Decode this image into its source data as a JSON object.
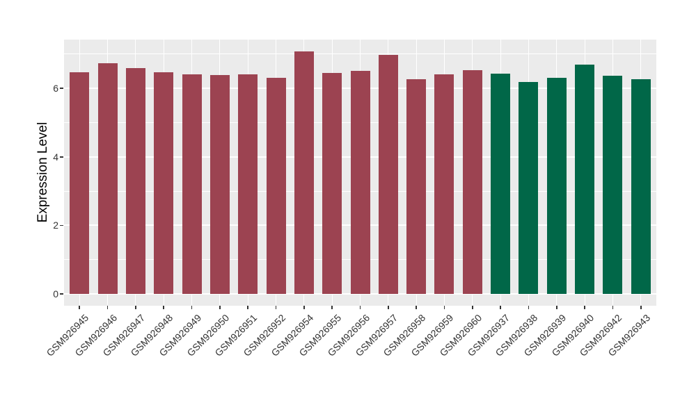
{
  "chart_data": {
    "type": "bar",
    "title": "",
    "xlabel": "",
    "ylabel": "Expression Level",
    "yticks": [
      0,
      2,
      4,
      6
    ],
    "minor_yticks": [
      1,
      3,
      5,
      7
    ],
    "ylim": [
      0,
      7.42
    ],
    "grid": "on",
    "legend_position": "none",
    "panel_background": "#EBEBEB",
    "grid_color": "#FFFFFF",
    "group_colors": {
      "left_group": "#9C4351",
      "right_group": "#016748"
    },
    "bars": [
      {
        "label": "GSM926945",
        "value": 6.47,
        "color": "#9C4351"
      },
      {
        "label": "GSM926946",
        "value": 6.73,
        "color": "#9C4351"
      },
      {
        "label": "GSM926947",
        "value": 6.6,
        "color": "#9C4351"
      },
      {
        "label": "GSM926948",
        "value": 6.47,
        "color": "#9C4351"
      },
      {
        "label": "GSM926949",
        "value": 6.42,
        "color": "#9C4351"
      },
      {
        "label": "GSM926950",
        "value": 6.38,
        "color": "#9C4351"
      },
      {
        "label": "GSM926951",
        "value": 6.4,
        "color": "#9C4351"
      },
      {
        "label": "GSM926952",
        "value": 6.3,
        "color": "#9C4351"
      },
      {
        "label": "GSM926954",
        "value": 7.07,
        "color": "#9C4351"
      },
      {
        "label": "GSM926955",
        "value": 6.46,
        "color": "#9C4351"
      },
      {
        "label": "GSM926956",
        "value": 6.51,
        "color": "#9C4351"
      },
      {
        "label": "GSM926957",
        "value": 6.97,
        "color": "#9C4351"
      },
      {
        "label": "GSM926958",
        "value": 6.26,
        "color": "#9C4351"
      },
      {
        "label": "GSM926959",
        "value": 6.41,
        "color": "#9C4351"
      },
      {
        "label": "GSM926960",
        "value": 6.53,
        "color": "#9C4351"
      },
      {
        "label": "GSM926937",
        "value": 6.43,
        "color": "#016748"
      },
      {
        "label": "GSM926938",
        "value": 6.19,
        "color": "#016748"
      },
      {
        "label": "GSM926939",
        "value": 6.31,
        "color": "#016748"
      },
      {
        "label": "GSM926940",
        "value": 6.7,
        "color": "#016748"
      },
      {
        "label": "GSM926942",
        "value": 6.36,
        "color": "#016748"
      },
      {
        "label": "GSM926943",
        "value": 6.26,
        "color": "#016748"
      }
    ]
  }
}
